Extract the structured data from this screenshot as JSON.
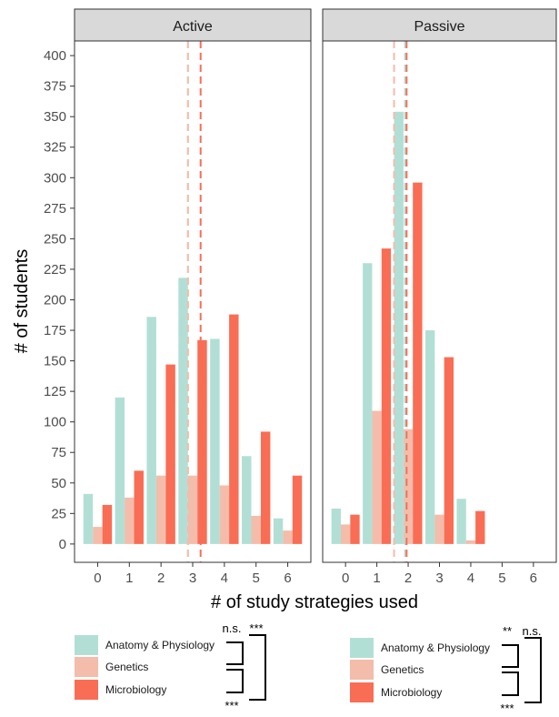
{
  "chart_data": {
    "type": "bar",
    "xlabel": "# of study strategies used",
    "ylabel": "# of students",
    "ylim": [
      -15,
      412
    ],
    "yticks": [
      0,
      25,
      50,
      75,
      100,
      125,
      150,
      175,
      200,
      225,
      250,
      275,
      300,
      325,
      350,
      375,
      400
    ],
    "categories": [
      "0",
      "1",
      "2",
      "3",
      "4",
      "5",
      "6"
    ],
    "grid": false,
    "legend_position": "bottom",
    "colors": {
      "Anatomy & Physiology": "#b2dfd5",
      "Genetics": "#f4bcaa",
      "Microbiology": "#f96d55",
      "strip": "#d9d9d9",
      "axis": "#333333"
    },
    "panels": [
      {
        "title": "Active",
        "series": [
          {
            "name": "Anatomy & Physiology",
            "values": [
              41,
              120,
              186,
              218,
              168,
              72,
              21
            ]
          },
          {
            "name": "Genetics",
            "values": [
              14,
              38,
              56,
              56,
              48,
              23,
              11
            ]
          },
          {
            "name": "Microbiology",
            "values": [
              32,
              60,
              147,
              167,
              188,
              92,
              56
            ]
          }
        ],
        "mean_lines": [
          {
            "series": "Anatomy & Physiology",
            "x": 2.85
          },
          {
            "series": "Genetics",
            "x": 2.85
          },
          {
            "series": "Microbiology",
            "x": 3.25
          }
        ],
        "legend_items": [
          "Anatomy & Physiology",
          "Genetics",
          "Microbiology"
        ],
        "significance": [
          {
            "between": [
              "Anatomy & Physiology",
              "Genetics"
            ],
            "label": "n.s."
          },
          {
            "between": [
              "Genetics",
              "Microbiology"
            ],
            "label": "***"
          },
          {
            "between": [
              "Anatomy & Physiology",
              "Microbiology"
            ],
            "label": "***"
          }
        ]
      },
      {
        "title": "Passive",
        "series": [
          {
            "name": "Anatomy & Physiology",
            "values": [
              29,
              230,
              354,
              175,
              37,
              0,
              0
            ]
          },
          {
            "name": "Genetics",
            "values": [
              16,
              109,
              94,
              24,
              3,
              0,
              0
            ]
          },
          {
            "name": "Microbiology",
            "values": [
              24,
              242,
              296,
              153,
              27,
              0,
              0
            ]
          }
        ],
        "mean_lines": [
          {
            "series": "Anatomy & Physiology",
            "x": 1.9
          },
          {
            "series": "Genetics",
            "x": 1.55
          },
          {
            "series": "Microbiology",
            "x": 1.95
          }
        ],
        "legend_items": [
          "Anatomy & Physiology",
          "Genetics",
          "Microbiology"
        ],
        "significance": [
          {
            "between": [
              "Anatomy & Physiology",
              "Genetics"
            ],
            "label": "**"
          },
          {
            "between": [
              "Genetics",
              "Microbiology"
            ],
            "label": "***"
          },
          {
            "between": [
              "Anatomy & Physiology",
              "Microbiology"
            ],
            "label": "n.s."
          }
        ]
      }
    ]
  }
}
